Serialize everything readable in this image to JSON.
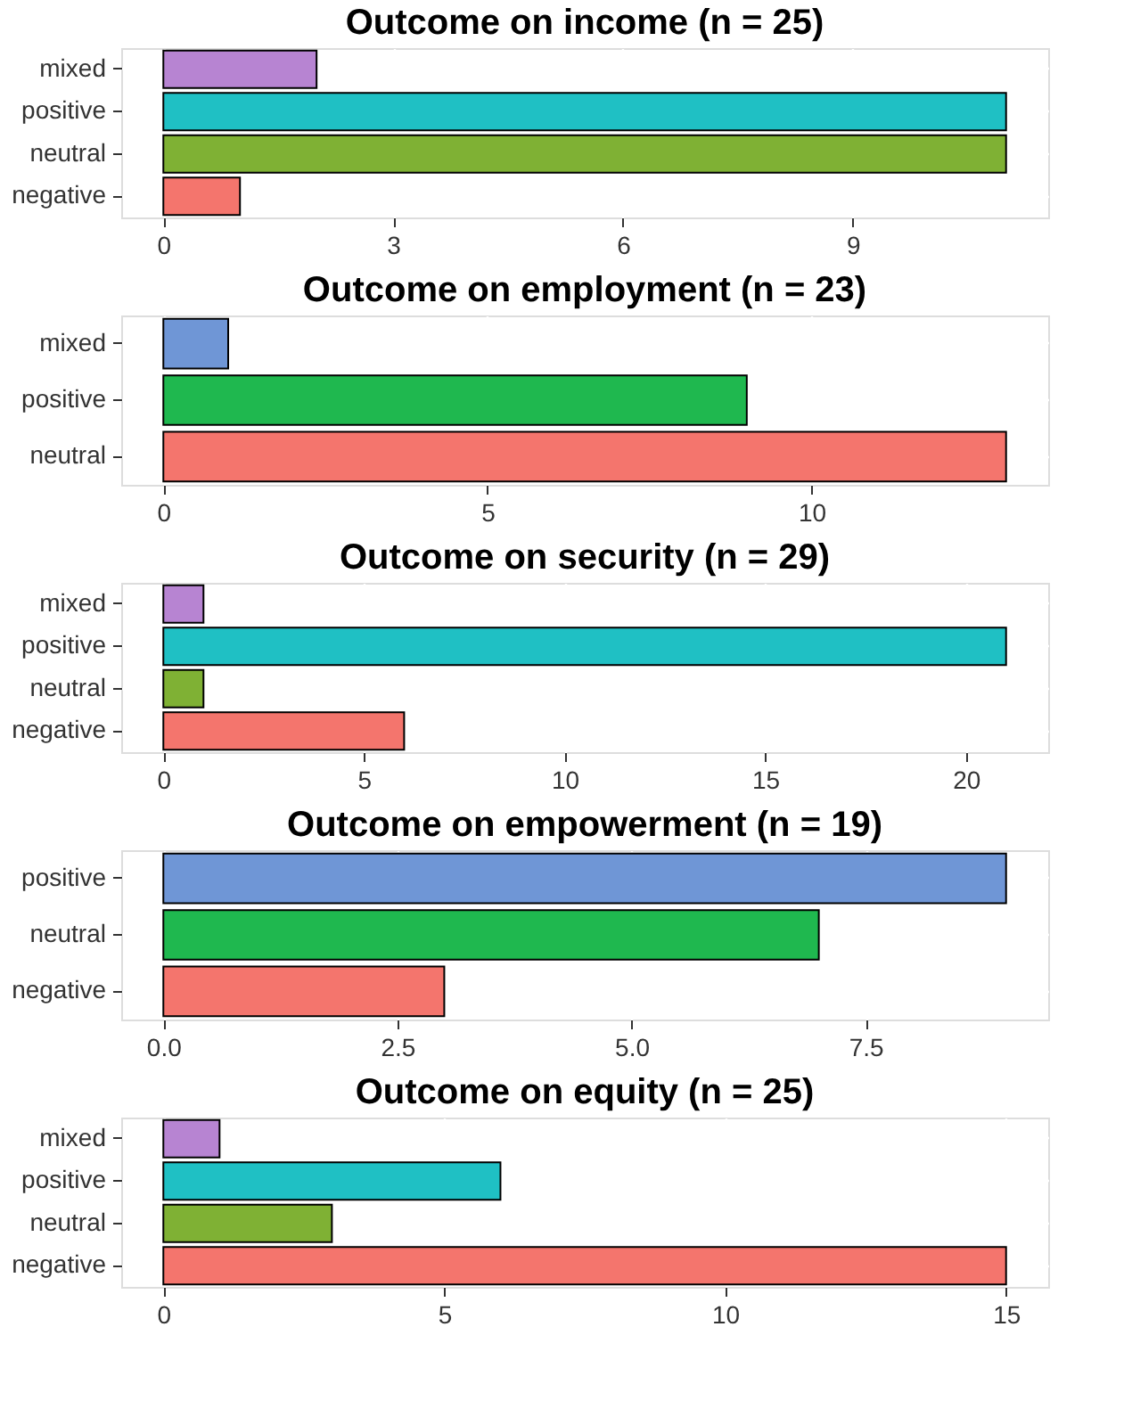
{
  "chart_data": [
    {
      "type": "bar",
      "orientation": "horizontal",
      "title": "Outcome on income (n = 25)",
      "categories": [
        "mixed",
        "positive",
        "neutral",
        "negative"
      ],
      "values": [
        2,
        11,
        11,
        1
      ],
      "colors": [
        "#b784d2",
        "#1fc0c4",
        "#7fb134",
        "#f4756d"
      ],
      "xlim": [
        -0.55,
        11.55
      ],
      "xticks": [
        0,
        3,
        6,
        9
      ],
      "grid": true
    },
    {
      "type": "bar",
      "orientation": "horizontal",
      "title": "Outcome on employment (n = 23)",
      "categories": [
        "mixed",
        "positive",
        "neutral"
      ],
      "values": [
        1,
        9,
        13
      ],
      "colors": [
        "#6f96d6",
        "#1fb84f",
        "#f4756d"
      ],
      "xlim": [
        -0.65,
        13.65
      ],
      "xticks": [
        0,
        5,
        10
      ],
      "grid": true
    },
    {
      "type": "bar",
      "orientation": "horizontal",
      "title": "Outcome on security (n = 29)",
      "categories": [
        "mixed",
        "positive",
        "neutral",
        "negative"
      ],
      "values": [
        1,
        21,
        1,
        6
      ],
      "colors": [
        "#b784d2",
        "#1fc0c4",
        "#7fb134",
        "#f4756d"
      ],
      "xlim": [
        -1.05,
        22.05
      ],
      "xticks": [
        0,
        5,
        10,
        15,
        20
      ],
      "grid": true
    },
    {
      "type": "bar",
      "orientation": "horizontal",
      "title": "Outcome on empowerment (n = 19)",
      "categories": [
        "positive",
        "neutral",
        "negative"
      ],
      "values": [
        9,
        7,
        3
      ],
      "colors": [
        "#6f96d6",
        "#1fb84f",
        "#f4756d"
      ],
      "xlim": [
        -0.45,
        9.45
      ],
      "xticks": [
        {
          "value": 0,
          "label": "0.0"
        },
        {
          "value": 2.5,
          "label": "2.5"
        },
        {
          "value": 5,
          "label": "5.0"
        },
        {
          "value": 7.5,
          "label": "7.5"
        }
      ],
      "grid": true
    },
    {
      "type": "bar",
      "orientation": "horizontal",
      "title": "Outcome on equity (n = 25)",
      "categories": [
        "mixed",
        "positive",
        "neutral",
        "negative"
      ],
      "values": [
        1,
        6,
        3,
        15
      ],
      "colors": [
        "#b784d2",
        "#1fc0c4",
        "#7fb134",
        "#f4756d"
      ],
      "xlim": [
        -0.75,
        15.75
      ],
      "xticks": [
        0,
        5,
        10,
        15
      ],
      "grid": true
    }
  ]
}
